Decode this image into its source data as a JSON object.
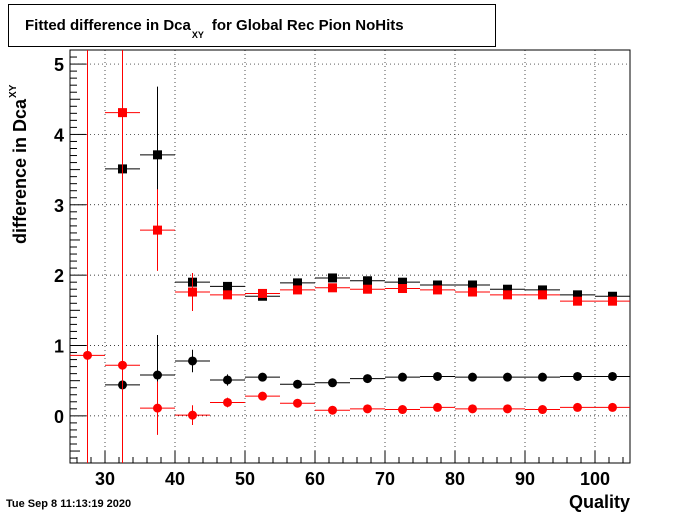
{
  "timestamp": "Tue Sep  8 11:13:19 2020",
  "chart_data": {
    "type": "scatter",
    "title_main": "Fitted difference in Dca",
    "title_sub": "XY",
    "title_rest": "for Global Rec Pion NoHits",
    "xlabel": "Quality",
    "ylabel_main": "difference in Dca",
    "ylabel_sub": "XY",
    "xlim": [
      25,
      105
    ],
    "ylim": [
      -0.67,
      5.2
    ],
    "x_ticks": [
      30,
      40,
      50,
      60,
      70,
      80,
      90,
      100
    ],
    "y_ticks": [
      0,
      1,
      2,
      3,
      4,
      5
    ],
    "grid": true,
    "series": [
      {
        "marker": "square",
        "color": "#000000",
        "x": [
          32.5,
          37.5,
          42.5,
          47.5,
          52.5,
          57.5,
          62.5,
          67.5,
          72.5,
          77.5,
          82.5,
          87.5,
          92.5,
          97.5,
          102.5
        ],
        "y": [
          3.51,
          3.71,
          1.9,
          1.84,
          1.7,
          1.89,
          1.96,
          1.92,
          1.9,
          1.86,
          1.86,
          1.8,
          1.79,
          1.72,
          1.7
        ],
        "yerr": [
          0,
          0.97,
          0.12,
          0.04,
          0.03,
          0.03,
          0.02,
          0.02,
          0.02,
          0.02,
          0.02,
          0.02,
          0.02,
          0.02,
          0.02
        ]
      },
      {
        "marker": "square",
        "color": "#ff0000",
        "x": [
          32.5,
          37.5,
          42.5,
          47.5,
          52.5,
          57.5,
          62.5,
          67.5,
          72.5,
          77.5,
          82.5,
          87.5,
          92.5,
          97.5,
          102.5
        ],
        "y": [
          4.31,
          2.64,
          1.76,
          1.72,
          1.74,
          1.79,
          1.82,
          1.8,
          1.81,
          1.79,
          1.76,
          1.72,
          1.72,
          1.63,
          1.63
        ],
        "yerr": [
          2.05,
          0.58,
          0.27,
          0.05,
          0.04,
          0.03,
          0.02,
          0.02,
          0.02,
          0.02,
          0.02,
          0.02,
          0.02,
          0.02,
          0.02
        ]
      },
      {
        "marker": "circle",
        "color": "#000000",
        "x": [
          32.5,
          37.5,
          42.5,
          47.5,
          52.5,
          57.5,
          62.5,
          67.5,
          72.5,
          77.5,
          82.5,
          87.5,
          92.5,
          97.5,
          102.5
        ],
        "y": [
          0.44,
          0.58,
          0.78,
          0.51,
          0.55,
          0.45,
          0.47,
          0.53,
          0.55,
          0.56,
          0.55,
          0.55,
          0.55,
          0.56,
          0.56
        ],
        "yerr": [
          0,
          0.57,
          0.16,
          0.08,
          0.04,
          0.03,
          0.02,
          0.02,
          0.02,
          0.02,
          0.02,
          0.02,
          0.02,
          0.02,
          0.02
        ]
      },
      {
        "marker": "circle",
        "color": "#ff0000",
        "x": [
          27.5,
          32.5,
          37.5,
          42.5,
          47.5,
          52.5,
          57.5,
          62.5,
          67.5,
          72.5,
          77.5,
          82.5,
          87.5,
          92.5,
          97.5,
          102.5
        ],
        "y": [
          0.86,
          0.72,
          0.11,
          0.01,
          0.19,
          0.28,
          0.18,
          0.08,
          0.1,
          0.09,
          0.12,
          0.1,
          0.1,
          0.09,
          0.12,
          0.12
        ],
        "yerr": [
          6.0,
          6.0,
          0.38,
          0.14,
          0.07,
          0.04,
          0.03,
          0.02,
          0.02,
          0.02,
          0.02,
          0.02,
          0.02,
          0.02,
          0.02,
          0.02
        ]
      }
    ]
  }
}
